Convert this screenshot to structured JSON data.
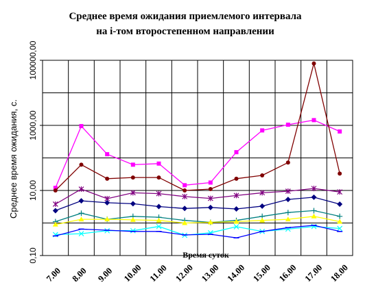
{
  "chart_data": {
    "type": "line",
    "title": [
      "Среднее время ожидания приемлемого интервала",
      "на i-том второстепенном направлении"
    ],
    "xlabel": "Время суток",
    "ylabel": "Среднее время ожидания, с.",
    "y_scale": "log",
    "ylim": [
      0.1,
      100000
    ],
    "y_ticks": [
      {
        "value": 0.1,
        "label": "0,10"
      },
      {
        "value": 10,
        "label": "10,00"
      },
      {
        "value": 1000,
        "label": "1000,00"
      },
      {
        "value": 100000,
        "label": "100000,00"
      }
    ],
    "categories": [
      "7.00",
      "8.00",
      "9.00",
      "10.00",
      "11.00",
      "12.00",
      "13.00",
      "14.00",
      "15.00",
      "16.00",
      "17.00",
      "18.00"
    ],
    "grid": "vertical and horizontal",
    "legend": "none",
    "series": [
      {
        "color": "#ff00ff",
        "marker": "square",
        "values": [
          12,
          950,
          130,
          62,
          67,
          14.5,
          17.5,
          150,
          700,
          1050,
          1450,
          650
        ]
      },
      {
        "color": "#800000",
        "marker": "circle",
        "values": [
          10,
          62,
          23,
          25,
          25,
          10,
          11,
          23,
          29,
          72,
          80000,
          33
        ]
      },
      {
        "color": "#800080",
        "marker": "star",
        "values": [
          3.8,
          11,
          5.6,
          8.5,
          8,
          6.5,
          5.7,
          7,
          8.5,
          9.5,
          11.5,
          9
        ]
      },
      {
        "color": "#000080",
        "marker": "diamond",
        "values": [
          2.4,
          4.8,
          4.2,
          3.9,
          3.2,
          2.8,
          3,
          2.7,
          3.3,
          5.3,
          6.2,
          3.8
        ]
      },
      {
        "color": "#008080",
        "marker": "plus",
        "values": [
          1.1,
          2,
          1.3,
          1.6,
          1.5,
          1.2,
          1.05,
          1.2,
          1.6,
          2.1,
          2.4,
          1.6
        ]
      },
      {
        "color": "#ffff00",
        "marker": "triangle",
        "values": [
          0.9,
          1.3,
          1.3,
          1.25,
          1.2,
          1.0,
          1.05,
          1.1,
          1.2,
          1.3,
          1.6,
          1.1
        ]
      },
      {
        "color": "#00ffff",
        "marker": "x",
        "values": [
          0.44,
          0.47,
          0.58,
          0.58,
          0.78,
          0.42,
          0.5,
          0.77,
          0.55,
          0.65,
          0.78,
          0.68
        ]
      },
      {
        "color": "#0000ff",
        "marker": "dash",
        "values": [
          0.4,
          0.65,
          0.6,
          0.55,
          0.55,
          0.43,
          0.45,
          0.35,
          0.55,
          0.72,
          0.85,
          0.55
        ]
      }
    ]
  }
}
